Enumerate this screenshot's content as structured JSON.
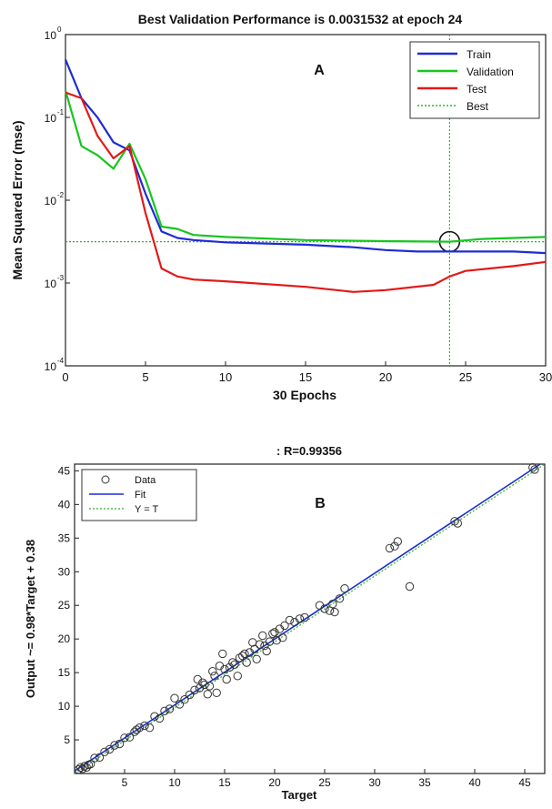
{
  "chart_data": [
    {
      "type": "line",
      "title": "Best Validation Performance is 0.0031532 at epoch 24",
      "panel_label": "A",
      "xlabel": "30 Epochs",
      "ylabel": "Mean Squared Error  (mse)",
      "xlim": [
        0,
        30
      ],
      "ylim": [
        0.0001,
        1
      ],
      "yscale": "log",
      "x_ticks": [
        0,
        5,
        10,
        15,
        20,
        25,
        30
      ],
      "y_ticks": [
        0.0001,
        0.001,
        0.01,
        0.1,
        1
      ],
      "y_tick_labels": [
        {
          "base": "10",
          "exp": "-4"
        },
        {
          "base": "10",
          "exp": "-3"
        },
        {
          "base": "10",
          "exp": "-2"
        },
        {
          "base": "10",
          "exp": "-1"
        },
        {
          "base": "10",
          "exp": "0"
        }
      ],
      "grid": false,
      "legend_position": "top-right",
      "series": [
        {
          "name": "Train",
          "color": "#1f2bd6",
          "x": [
            0,
            1,
            2,
            3,
            4,
            5,
            6,
            7,
            8,
            10,
            15,
            18,
            20,
            22,
            24,
            26,
            28,
            30
          ],
          "y": [
            0.5,
            0.17,
            0.1,
            0.05,
            0.04,
            0.012,
            0.0042,
            0.0035,
            0.0033,
            0.0031,
            0.0029,
            0.0027,
            0.0025,
            0.0024,
            0.0024,
            0.0024,
            0.0024,
            0.0023
          ]
        },
        {
          "name": "Validation",
          "color": "#17c61f",
          "x": [
            0,
            1,
            2,
            3,
            4,
            5,
            6,
            7,
            8,
            10,
            15,
            20,
            24,
            26,
            30
          ],
          "y": [
            0.21,
            0.045,
            0.035,
            0.024,
            0.048,
            0.018,
            0.0048,
            0.0045,
            0.0038,
            0.0036,
            0.0033,
            0.0032,
            0.0031532,
            0.0034,
            0.0036
          ]
        },
        {
          "name": "Test",
          "color": "#e31818",
          "x": [
            0,
            1,
            2,
            3,
            4,
            5,
            6,
            7,
            8,
            10,
            15,
            18,
            20,
            23,
            24,
            25,
            28,
            30
          ],
          "y": [
            0.2,
            0.17,
            0.06,
            0.032,
            0.045,
            0.007,
            0.0015,
            0.0012,
            0.0011,
            0.00105,
            0.0009,
            0.00078,
            0.00082,
            0.00095,
            0.0012,
            0.0014,
            0.0016,
            0.0018
          ]
        }
      ],
      "best": {
        "name": "Best",
        "epoch": 24,
        "value": 0.0031532,
        "color": "#2bb52b"
      }
    },
    {
      "type": "scatter",
      "title": ": R=0.99356",
      "panel_label": "B",
      "xlabel": "Target",
      "ylabel": "Output ~= 0.98*Target + 0.38",
      "xlim": [
        0,
        47
      ],
      "ylim": [
        0,
        46
      ],
      "x_ticks": [
        5,
        10,
        15,
        20,
        25,
        30,
        35,
        40,
        45
      ],
      "y_ticks": [
        5,
        10,
        15,
        20,
        25,
        30,
        35,
        40,
        45
      ],
      "grid": false,
      "legend_position": "top-left",
      "legend": [
        {
          "name": "Data",
          "kind": "circle",
          "color": "#333333"
        },
        {
          "name": "Fit",
          "kind": "line",
          "color": "#1f2bd6"
        },
        {
          "name": "Y = T",
          "kind": "dotted",
          "color": "#2bb52b"
        }
      ],
      "fit": {
        "slope": 0.98,
        "intercept": 0.38
      },
      "points": [
        [
          0.4,
          0.6
        ],
        [
          0.6,
          0.9
        ],
        [
          0.8,
          0.7
        ],
        [
          1.0,
          1.1
        ],
        [
          1.2,
          0.9
        ],
        [
          1.4,
          1.3
        ],
        [
          1.6,
          1.4
        ],
        [
          2.0,
          2.3
        ],
        [
          2.5,
          2.4
        ],
        [
          3.0,
          3.2
        ],
        [
          3.5,
          3.6
        ],
        [
          4.0,
          4.2
        ],
        [
          4.5,
          4.4
        ],
        [
          5.0,
          5.3
        ],
        [
          5.5,
          5.4
        ],
        [
          6.0,
          6.2
        ],
        [
          6.2,
          6.5
        ],
        [
          6.5,
          6.8
        ],
        [
          7.0,
          7.1
        ],
        [
          7.5,
          6.8
        ],
        [
          8.0,
          8.5
        ],
        [
          8.5,
          8.2
        ],
        [
          9.0,
          9.3
        ],
        [
          9.5,
          9.6
        ],
        [
          10.0,
          11.2
        ],
        [
          10.5,
          10.3
        ],
        [
          11.0,
          11.0
        ],
        [
          11.5,
          11.7
        ],
        [
          12.0,
          12.4
        ],
        [
          12.3,
          14.0
        ],
        [
          12.5,
          12.7
        ],
        [
          12.8,
          13.5
        ],
        [
          13.0,
          13.2
        ],
        [
          13.3,
          11.8
        ],
        [
          13.5,
          13.0
        ],
        [
          13.8,
          15.2
        ],
        [
          14.0,
          14.5
        ],
        [
          14.2,
          12.0
        ],
        [
          14.5,
          16.0
        ],
        [
          14.8,
          17.8
        ],
        [
          15.0,
          15.5
        ],
        [
          15.2,
          14.0
        ],
        [
          15.5,
          15.8
        ],
        [
          15.8,
          16.5
        ],
        [
          16.0,
          16.2
        ],
        [
          16.3,
          14.5
        ],
        [
          16.5,
          17.2
        ],
        [
          16.8,
          17.5
        ],
        [
          17.0,
          17.8
        ],
        [
          17.2,
          16.5
        ],
        [
          17.5,
          18.0
        ],
        [
          17.8,
          19.5
        ],
        [
          18.0,
          18.5
        ],
        [
          18.2,
          17.0
        ],
        [
          18.5,
          19.2
        ],
        [
          18.8,
          20.5
        ],
        [
          19.0,
          19.0
        ],
        [
          19.2,
          18.2
        ],
        [
          19.5,
          19.6
        ],
        [
          19.8,
          20.8
        ],
        [
          20.0,
          21.0
        ],
        [
          20.2,
          19.8
        ],
        [
          20.5,
          21.5
        ],
        [
          20.8,
          20.2
        ],
        [
          21.0,
          22.0
        ],
        [
          21.5,
          22.8
        ],
        [
          22.0,
          22.5
        ],
        [
          22.5,
          23.0
        ],
        [
          23.0,
          23.2
        ],
        [
          24.5,
          25.0
        ],
        [
          25.0,
          24.5
        ],
        [
          25.5,
          24.2
        ],
        [
          25.8,
          25.2
        ],
        [
          26.0,
          24.0
        ],
        [
          26.5,
          26.0
        ],
        [
          27.0,
          27.5
        ],
        [
          31.5,
          33.5
        ],
        [
          32.0,
          33.8
        ],
        [
          32.3,
          34.5
        ],
        [
          33.5,
          27.8
        ],
        [
          38.0,
          37.5
        ],
        [
          38.3,
          37.2
        ],
        [
          45.8,
          45.5
        ],
        [
          46.0,
          45.2
        ]
      ]
    }
  ]
}
